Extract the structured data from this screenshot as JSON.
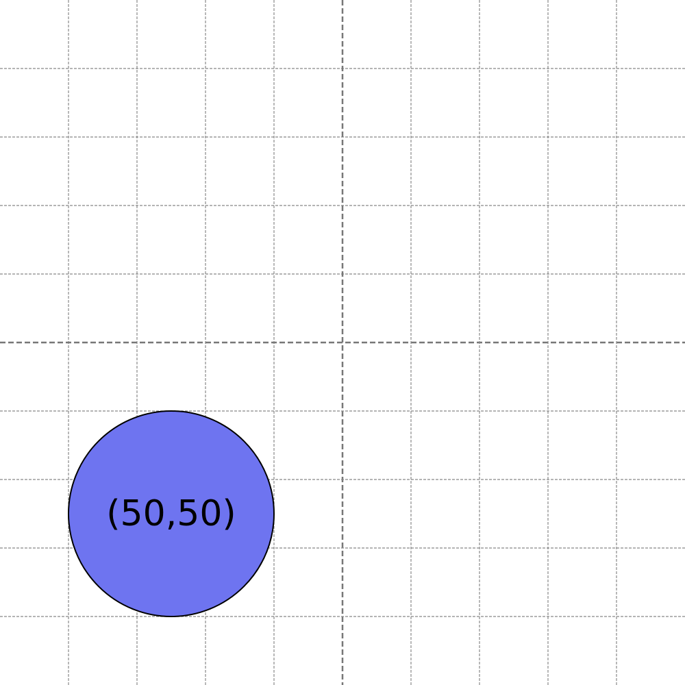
{
  "diagram": {
    "grid": {
      "visible": true,
      "color": "#888888",
      "major_color": "#777777",
      "line_style": "dashed"
    },
    "circle": {
      "label": "(50,50)",
      "fill": "#6e74f0",
      "stroke": "#000000",
      "label_color": "#000000"
    },
    "background": "#ffffff"
  }
}
